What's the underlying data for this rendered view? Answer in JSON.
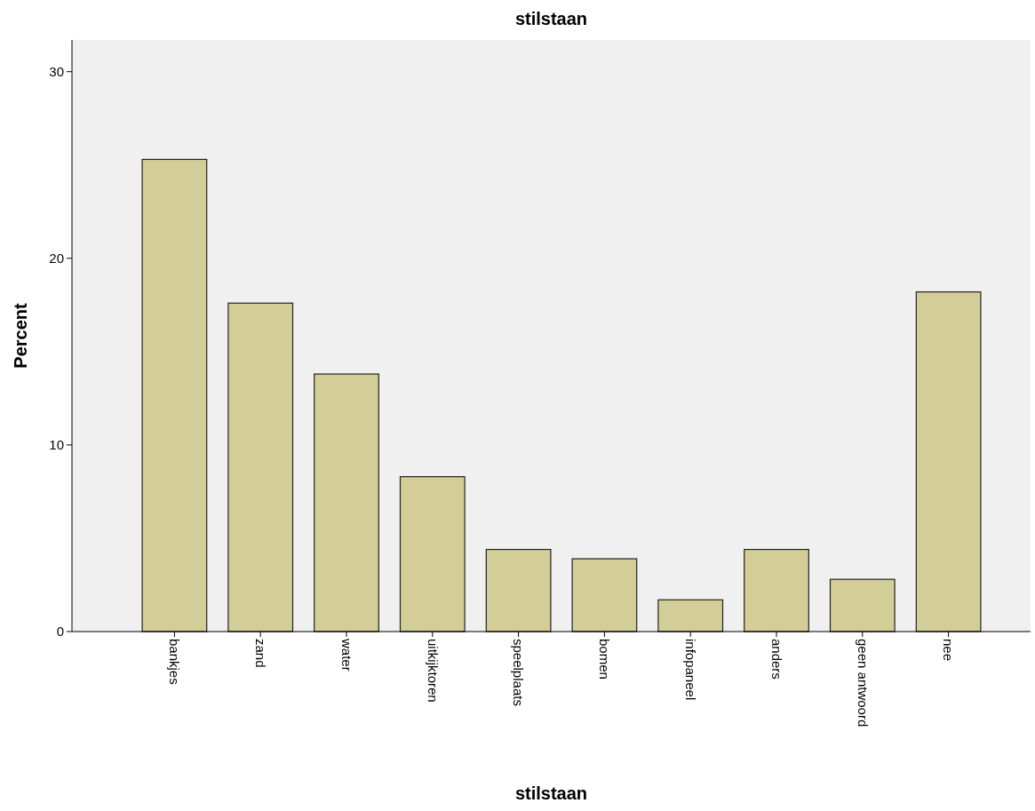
{
  "chart_data": {
    "type": "bar",
    "title": "stilstaan",
    "xlabel": "stilstaan",
    "ylabel": "Percent",
    "categories": [
      "bankjes",
      "zand",
      "water",
      "uitkijktoren",
      "speelplaats",
      "bomen",
      "infopaneel",
      "anders",
      "geen antwoord",
      "nee"
    ],
    "values": [
      25.3,
      17.6,
      13.8,
      8.3,
      4.4,
      3.9,
      1.7,
      4.4,
      2.8,
      18.2
    ],
    "color": "#d3ce97",
    "ylim": [
      0,
      31.7
    ],
    "yticks": [
      0,
      10,
      20,
      30
    ],
    "grid": false
  }
}
